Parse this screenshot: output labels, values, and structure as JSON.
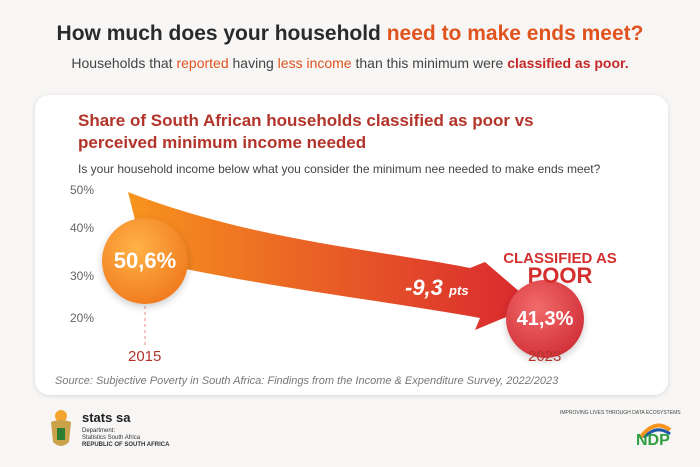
{
  "header": {
    "title_a": "How much does your household ",
    "title_b": "need to make ends meet?",
    "sub_a": "Households that ",
    "sub_b": "reported",
    "sub_c": " having ",
    "sub_d": "less income",
    "sub_e": " than this minimum were ",
    "sub_f": "classified as poor."
  },
  "chart_data": {
    "type": "line",
    "title": "Share of South African households classified as poor vs perceived minimum income needed",
    "subtitle": "Is your household income below what you consider the minimum nee needed to make ends meet?",
    "x": [
      "2015",
      "2023"
    ],
    "values": [
      50.6,
      41.3
    ],
    "value_labels": [
      "50,6%",
      "41,3%"
    ],
    "y_ticks": [
      "50%",
      "40%",
      "30%",
      "20%"
    ],
    "ylim": [
      20,
      50
    ],
    "change_label": "-9,3",
    "change_unit": "pts",
    "annotation_a": "CLASSIFIED AS",
    "annotation_b": "POOR",
    "source": "Source: Subjective Poverty in South Africa: Findings from the Income & Expenditure Survey, 2022/2023"
  },
  "footer": {
    "org": "stats sa",
    "dept1": "Department:",
    "dept2": "Statistics South Africa",
    "country": "REPUBLIC OF SOUTH AFRICA",
    "tagline": "IMPROVING LIVES THROUGH DATA ECOSYSTEMS",
    "ndp": "NDP"
  },
  "colors": {
    "orange": "#ec6a12",
    "red": "#c8202b"
  }
}
